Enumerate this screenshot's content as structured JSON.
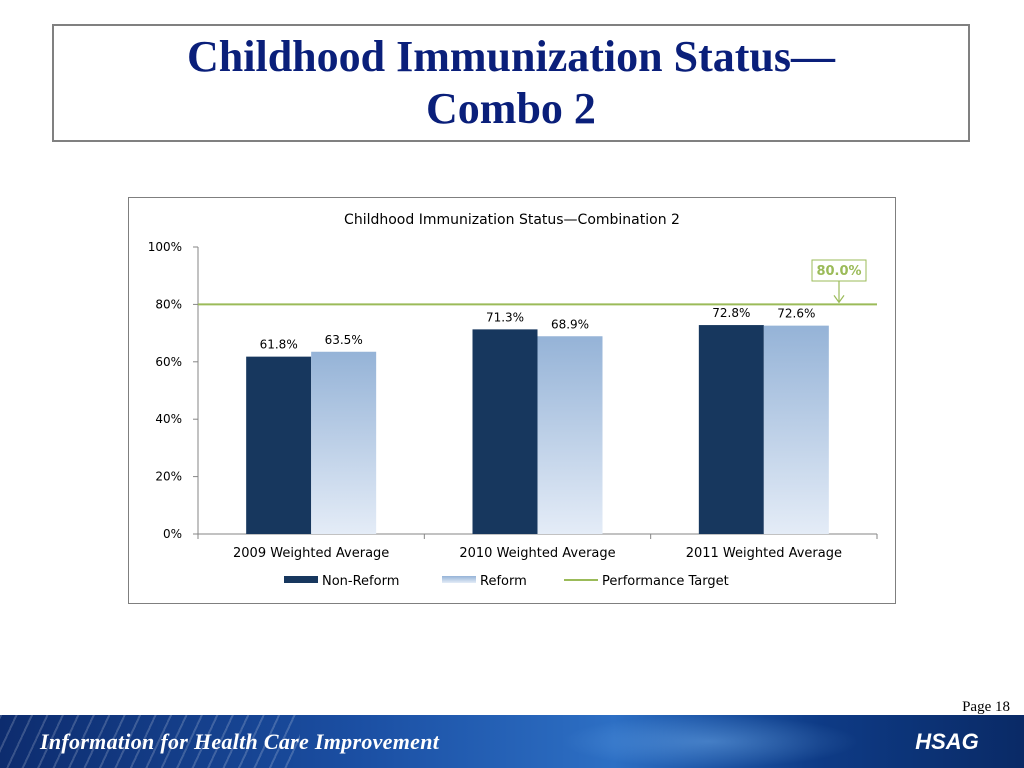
{
  "slide": {
    "title_line1": "Childhood Immunization Status—",
    "title_line2": "Combo 2",
    "page_number": "Page 18"
  },
  "footer": {
    "tagline": "Information for Health Care Improvement",
    "logo_text": "HSAG"
  },
  "chart_data": {
    "type": "bar",
    "title": "Childhood Immunization Status—Combination 2",
    "categories": [
      "2009 Weighted Average",
      "2010 Weighted Average",
      "2011 Weighted Average"
    ],
    "series": [
      {
        "name": "Non-Reform",
        "values": [
          61.8,
          71.3,
          72.8
        ],
        "labels": [
          "61.8%",
          "71.3%",
          "72.8%"
        ],
        "color": "#17375e"
      },
      {
        "name": "Reform",
        "values": [
          63.5,
          68.9,
          72.6
        ],
        "labels": [
          "63.5%",
          "68.9%",
          "72.6%"
        ],
        "color": "#95b3d7"
      }
    ],
    "target": {
      "name": "Performance Target",
      "value": 80.0,
      "label": "80.0%",
      "color": "#9bbb59"
    },
    "ylim": [
      0,
      100
    ],
    "yticks": [
      0,
      20,
      40,
      60,
      80,
      100
    ],
    "ytick_labels": [
      "0%",
      "20%",
      "40%",
      "60%",
      "80%",
      "100%"
    ],
    "grid": false,
    "legend": "bottom"
  }
}
